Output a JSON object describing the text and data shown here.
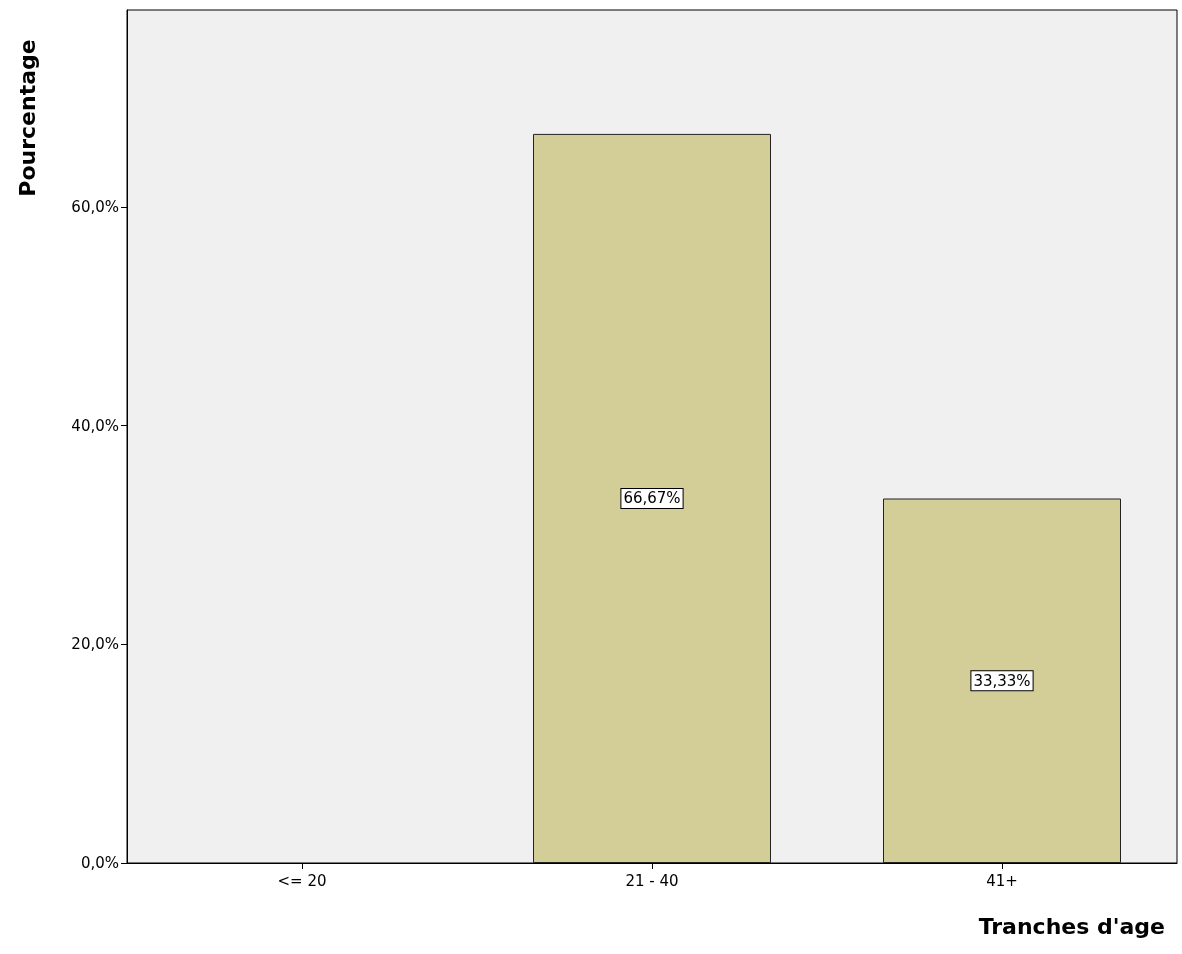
{
  "chart_data": {
    "type": "bar",
    "xlabel": "Tranches d'age",
    "ylabel": "Pourcentage",
    "categories": [
      "<= 20",
      "21 - 40",
      "41+"
    ],
    "values": [
      0,
      66.67,
      33.33
    ],
    "value_labels": [
      null,
      "66,67%",
      "33,33%"
    ],
    "color": "#d3ce97",
    "ylim": [
      0,
      78
    ],
    "yticks": [
      {
        "value": 0,
        "label": "0,0%"
      },
      {
        "value": 20,
        "label": "20,0%"
      },
      {
        "value": 40,
        "label": "40,0%"
      },
      {
        "value": 60,
        "label": "60,0%"
      }
    ],
    "grid": false
  }
}
